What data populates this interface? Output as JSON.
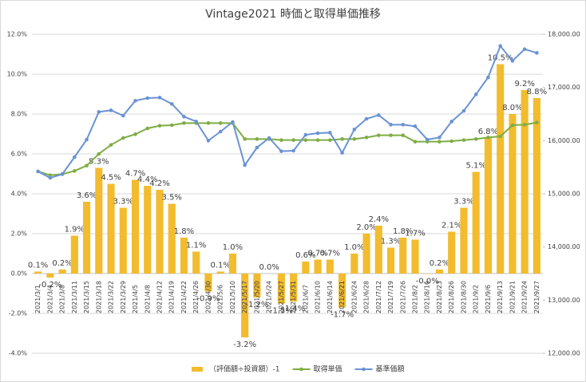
{
  "chart_data": {
    "type": "bar_line",
    "title": "Vintage2021 時価と取得単価推移",
    "categories": [
      "2021/3/1",
      "2021/3/4",
      "2021/3/8",
      "2021/3/11",
      "2021/3/15",
      "2021/3/18",
      "2021/3/22",
      "2021/3/29",
      "2021/4/5",
      "2021/4/8",
      "2021/4/12",
      "2021/4/19",
      "2021/4/22",
      "2021/4/26",
      "2021/4/30",
      "2021/5/6",
      "2021/5/10",
      "2021/5/17",
      "2021/5/20",
      "2021/5/24",
      "2021/5/27",
      "2021/5/31",
      "2021/6/7",
      "2021/6/10",
      "2021/6/14",
      "2021/6/21",
      "2021/6/24",
      "2021/6/28",
      "2021/7/12",
      "2021/7/19",
      "2021/7/26",
      "2021/8/2",
      "2021/8/16",
      "2021/8/23",
      "2021/8/26",
      "2021/8/30",
      "2021/9/2",
      "2021/9/6",
      "2021/9/13",
      "2021/9/21",
      "2021/9/24",
      "2021/9/27"
    ],
    "series": [
      {
        "name": "（評価額÷投資額）-1",
        "kind": "bar",
        "axis": "y",
        "color": "#f2bc2e",
        "values": [
          0.1,
          -0.2,
          0.2,
          1.9,
          3.6,
          5.3,
          4.5,
          3.3,
          4.7,
          4.4,
          4.2,
          3.5,
          1.8,
          1.1,
          -0.9,
          0.1,
          1.0,
          -3.2,
          -1.2,
          0.0,
          -1.5,
          -1.4,
          0.6,
          0.7,
          0.7,
          -1.7,
          1.0,
          2.0,
          2.4,
          1.3,
          1.8,
          1.7,
          -0.02,
          0.2,
          2.1,
          3.3,
          5.1,
          6.8,
          10.5,
          8.0,
          9.2,
          8.8
        ],
        "value_labels": [
          "0.1%",
          "-0.2%",
          "0.2%",
          "1.9%",
          "3.6%",
          "5.3%",
          "4.5%",
          "3.3%",
          "4.7%",
          "4.4%",
          "4.2%",
          "3.5%",
          "1.8%",
          "1.1%",
          "-0.9%",
          "0.1%",
          "1.0%",
          "-3.2%",
          "-1.2%",
          "0.0%",
          "-1.5%",
          "-1.4%",
          "0.6%",
          "0.7%",
          "0.7%",
          "-1.7%",
          "1.0%",
          "2.0%",
          "2.4%",
          "1.3%",
          "1.8%",
          "1.7%",
          "-0.0%",
          "0.2%",
          "2.1%",
          "3.3%",
          "5.1%",
          "6.8%",
          "10.5%",
          "8.0%",
          "9.2%",
          "8.8%"
        ]
      },
      {
        "name": "取得単価",
        "kind": "line",
        "axis": "y2",
        "color": "#7fad44",
        "values": [
          15420,
          15350,
          15370,
          15430,
          15530,
          15750,
          15920,
          16050,
          16120,
          16230,
          16280,
          16290,
          16330,
          16330,
          16330,
          16330,
          16330,
          16030,
          16030,
          16030,
          16010,
          16010,
          16010,
          16010,
          16010,
          16030,
          16030,
          16060,
          16100,
          16100,
          16100,
          15980,
          15980,
          15980,
          15990,
          16010,
          16030,
          16060,
          16080,
          16290,
          16300,
          16340
        ]
      },
      {
        "name": "基準価額",
        "kind": "line",
        "axis": "y2",
        "color": "#6a93d4",
        "values": [
          15420,
          15300,
          15370,
          15690,
          16020,
          16540,
          16570,
          16470,
          16750,
          16800,
          16810,
          16690,
          16450,
          16360,
          16000,
          16170,
          16350,
          15540,
          15870,
          16050,
          15800,
          15810,
          16110,
          16140,
          16150,
          15770,
          16210,
          16410,
          16480,
          16300,
          16300,
          16270,
          16020,
          16060,
          16360,
          16560,
          16870,
          17190,
          17780,
          17500,
          17720,
          17650
        ]
      }
    ],
    "ylim": [
      -4,
      12
    ],
    "yticks": [
      {
        "value": -4,
        "label": "-4.0%"
      },
      {
        "value": -2,
        "label": "-2.0%"
      },
      {
        "value": 0,
        "label": "0.0%"
      },
      {
        "value": 2,
        "label": "2.0%"
      },
      {
        "value": 4,
        "label": "4.0%"
      },
      {
        "value": 6,
        "label": "6.0%"
      },
      {
        "value": 8,
        "label": "8.0%"
      },
      {
        "value": 10,
        "label": "10.0%"
      },
      {
        "value": 12,
        "label": "12.0%"
      }
    ],
    "y2lim": [
      12000,
      18000
    ],
    "y2ticks": [
      {
        "value": 12000,
        "label": "12,000.00"
      },
      {
        "value": 13000,
        "label": "13,000.00"
      },
      {
        "value": 14000,
        "label": "14,000.00"
      },
      {
        "value": 15000,
        "label": "15,000.00"
      },
      {
        "value": 16000,
        "label": "16,000.00"
      },
      {
        "value": 17000,
        "label": "17,000.00"
      },
      {
        "value": 18000,
        "label": "18,000.00"
      }
    ],
    "grid": true,
    "legend": "bottom"
  }
}
